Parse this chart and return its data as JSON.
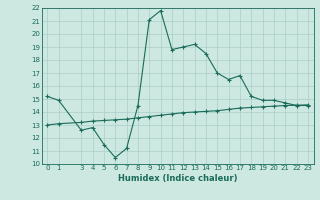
{
  "xlabel": "Humidex (Indice chaleur)",
  "line1_x": [
    0,
    1,
    3,
    4,
    5,
    6,
    7,
    8,
    9,
    10,
    11,
    12,
    13,
    14,
    15,
    16,
    17,
    18,
    19,
    20,
    21,
    22,
    23
  ],
  "line1_y": [
    15.2,
    14.9,
    12.6,
    12.8,
    11.5,
    10.5,
    11.2,
    14.5,
    21.1,
    21.8,
    18.8,
    19.0,
    19.2,
    18.5,
    17.0,
    16.5,
    16.8,
    15.2,
    14.9,
    14.9,
    14.7,
    14.5,
    14.5
  ],
  "line2_x": [
    0,
    1,
    3,
    4,
    5,
    6,
    7,
    8,
    9,
    10,
    11,
    12,
    13,
    14,
    15,
    16,
    17,
    18,
    19,
    20,
    21,
    22,
    23
  ],
  "line2_y": [
    13.0,
    13.1,
    13.2,
    13.3,
    13.35,
    13.4,
    13.45,
    13.55,
    13.65,
    13.75,
    13.85,
    13.95,
    14.0,
    14.05,
    14.1,
    14.2,
    14.3,
    14.35,
    14.4,
    14.45,
    14.5,
    14.52,
    14.55
  ],
  "line_color": "#1a6b5a",
  "bg_color": "#cce8e0",
  "grid_color": "#aacfc8",
  "ylim": [
    10,
    22
  ],
  "xlim": [
    -0.5,
    23.5
  ],
  "yticks": [
    10,
    11,
    12,
    13,
    14,
    15,
    16,
    17,
    18,
    19,
    20,
    21,
    22
  ],
  "xticks": [
    0,
    1,
    3,
    4,
    5,
    6,
    7,
    8,
    9,
    10,
    11,
    12,
    13,
    14,
    15,
    16,
    17,
    18,
    19,
    20,
    21,
    22,
    23
  ],
  "tick_fontsize": 5.0,
  "xlabel_fontsize": 6.0
}
